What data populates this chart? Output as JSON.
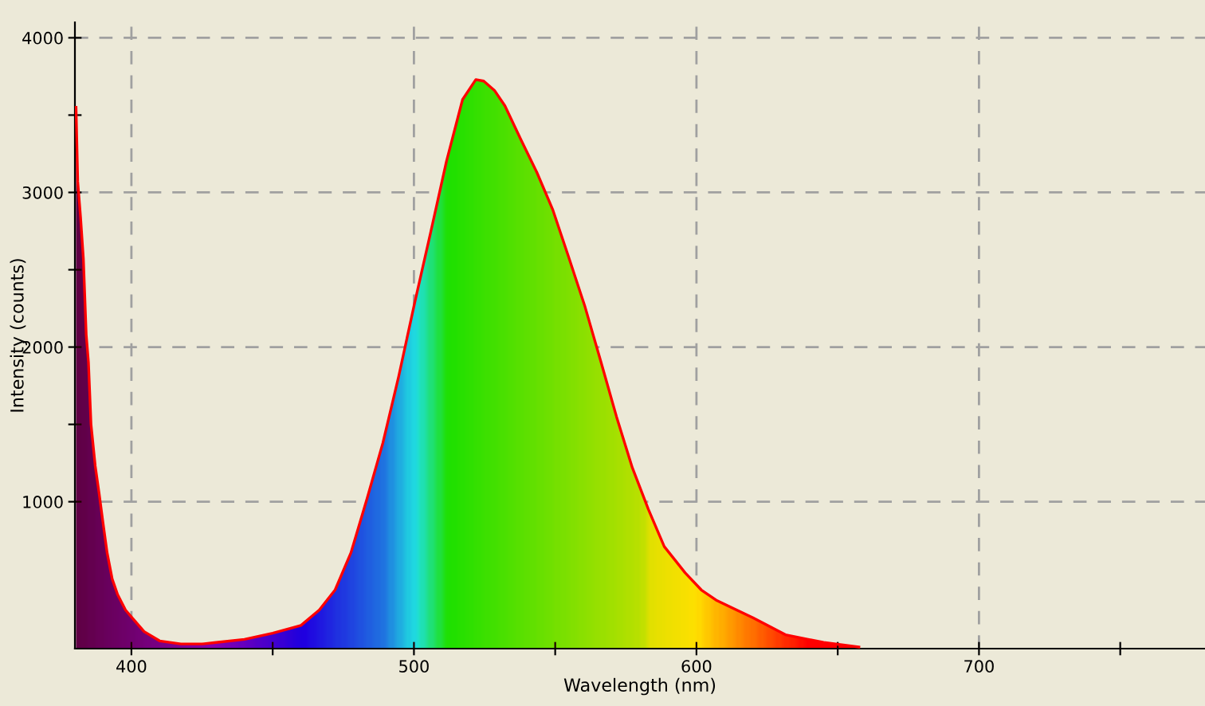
{
  "chart_data": {
    "type": "area",
    "xlabel": "Wavelength (nm)",
    "ylabel": "Intensity (counts)",
    "x": [
      380.4,
      381,
      382,
      383,
      384,
      384.8,
      385.7,
      387.2,
      388.6,
      389.9,
      391.4,
      393.2,
      395.1,
      397.9,
      400.7,
      404.5,
      410,
      417.5,
      425,
      430,
      440,
      450,
      460,
      466.5,
      472.1,
      477.7,
      483.4,
      489,
      494.6,
      500.3,
      505.9,
      511.5,
      517.2,
      521.9,
      524.7,
      528.5,
      532.2,
      537.9,
      543.5,
      549.1,
      554.8,
      560.4,
      566.1,
      571.7,
      577.3,
      583,
      588.6,
      596,
      601.7,
      607.3,
      620,
      631.5,
      645,
      657.5
    ],
    "series": [
      {
        "color": "#ff0000",
        "values": [
          3550,
          3070,
          2840,
          2570,
          2080,
          1900,
          1500,
          1230,
          1050,
          870,
          670,
          500,
          400,
          300,
          240,
          160,
          100,
          80,
          80,
          90,
          110,
          150,
          200,
          300,
          430,
          670,
          1020,
          1380,
          1810,
          2290,
          2740,
          3200,
          3600,
          3730,
          3720,
          3660,
          3560,
          3340,
          3130,
          2890,
          2580,
          2270,
          1910,
          1550,
          1220,
          950,
          710,
          540,
          430,
          360,
          250,
          140,
          90,
          60
        ]
      }
    ],
    "xlim": [
      380,
      780
    ],
    "ylim": [
      50,
      4100
    ],
    "xticks": [
      400,
      {
        "value": 450,
        "label": null
      },
      500,
      {
        "value": 550,
        "label": null
      },
      600,
      {
        "value": 650,
        "label": null
      },
      700,
      {
        "value": 750,
        "label": null
      }
    ],
    "yticks": [
      {
        "value": 1500,
        "label": null
      },
      1000,
      2000,
      {
        "value": 2500,
        "label": null
      },
      3000,
      {
        "value": 3500,
        "label": null
      },
      4000
    ],
    "grid": true,
    "line_style": "solid",
    "legend": false
  }
}
